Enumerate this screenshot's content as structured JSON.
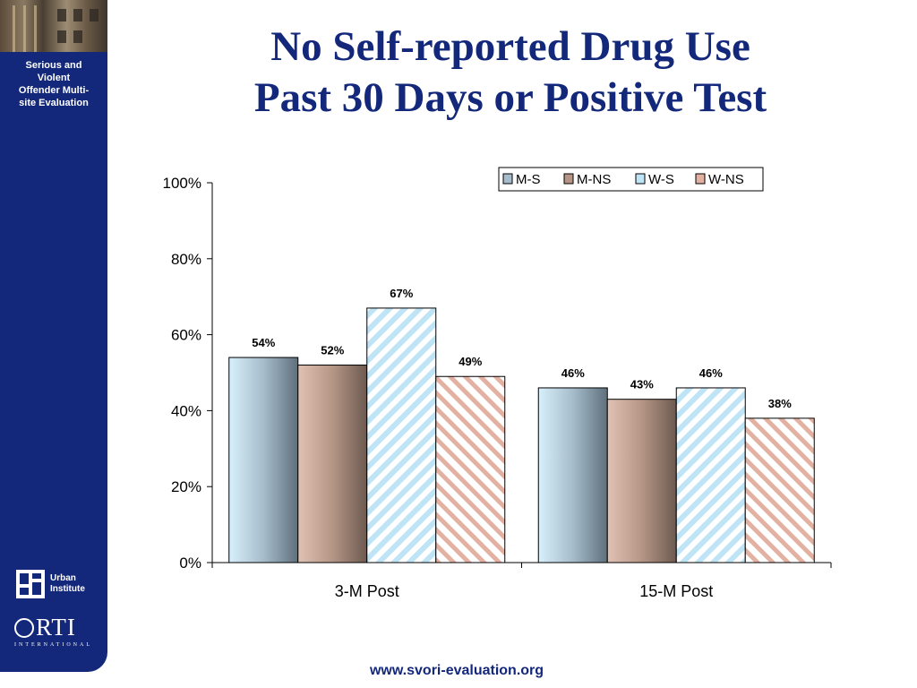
{
  "sidebar": {
    "program": "Serious and\nViolent\nOffender Multi-\nsite Evaluation",
    "urban_logo": "Urban\nInstitute",
    "rti_logo": "RTI",
    "rti_sub": "INTERNATIONAL"
  },
  "slide": {
    "title": "No Self-reported Drug Use\nPast 30 Days or Positive Test",
    "footer": "www.svori-evaluation.org"
  },
  "colors": {
    "navy": "#13287a",
    "M-S": "#9fb2c2",
    "M-NS": "#a88c80",
    "W-S": "#bfe4f6",
    "W-NS": "#e8b8a8"
  },
  "chart_data": {
    "type": "bar",
    "categories": [
      "3-M Post",
      "15-M Post"
    ],
    "series": [
      {
        "name": "M-S",
        "values": [
          54,
          46
        ],
        "labels": [
          "54%",
          "46%"
        ]
      },
      {
        "name": "M-NS",
        "values": [
          52,
          43
        ],
        "labels": [
          "52%",
          "43%"
        ]
      },
      {
        "name": "W-S",
        "values": [
          67,
          46
        ],
        "labels": [
          "67%",
          "46%"
        ]
      },
      {
        "name": "W-NS",
        "values": [
          49,
          38
        ],
        "labels": [
          "49%",
          "38%"
        ]
      }
    ],
    "yticks": [
      "100%",
      "80%",
      "60%",
      "40%",
      "20%",
      "0%"
    ],
    "ylim": [
      0,
      100
    ],
    "grid": false,
    "legend_position": "top-right"
  }
}
